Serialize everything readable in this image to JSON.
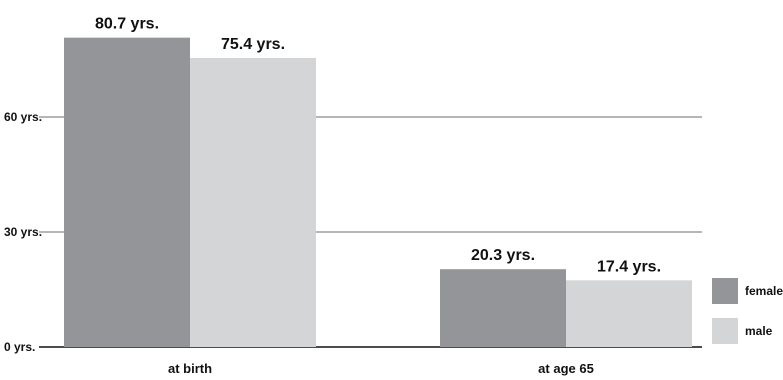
{
  "chart_data": {
    "type": "bar",
    "categories": [
      "at birth",
      "at age 65"
    ],
    "series": [
      {
        "name": "female",
        "color": "#939598",
        "values": [
          80.7,
          20.3
        ],
        "labels": [
          "80.7 yrs.",
          "20.3 yrs."
        ]
      },
      {
        "name": "male",
        "color": "#d4d5d6",
        "values": [
          75.4,
          17.4
        ],
        "labels": [
          "75.4 yrs.",
          "17.4 yrs."
        ]
      }
    ],
    "y_ticks": [
      {
        "value": 0,
        "label": "0 yrs."
      },
      {
        "value": 30,
        "label": "30 yrs."
      },
      {
        "value": 60,
        "label": "60 yrs."
      }
    ],
    "ylim": [
      0,
      90
    ],
    "grid": true,
    "legend_position": "right",
    "title": "",
    "xlabel": "",
    "ylabel": ""
  }
}
